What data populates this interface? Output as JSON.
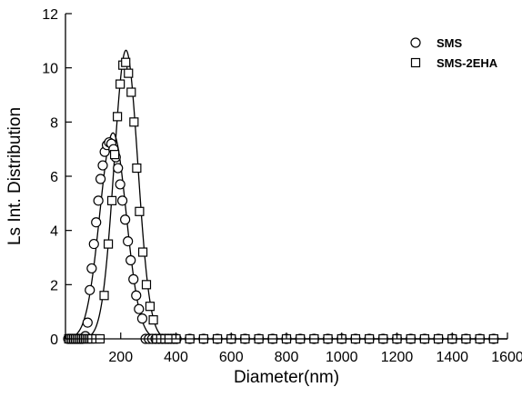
{
  "chart_data": {
    "type": "scatter",
    "title": "",
    "xlabel": "Diameter(nm)",
    "ylabel": "Ls Int. Distribution",
    "xlim": [
      0,
      1600
    ],
    "ylim": [
      0,
      12
    ],
    "xticks": [
      200,
      400,
      600,
      800,
      1000,
      1200,
      1400,
      1600
    ],
    "yticks": [
      0,
      2,
      4,
      6,
      8,
      10,
      12
    ],
    "xtick_labels": [
      "200",
      "400",
      "600",
      "800",
      "1000",
      "1200",
      "1400",
      "1600"
    ],
    "ytick_labels": [
      "0",
      "2",
      "4",
      "6",
      "8",
      "10",
      "12"
    ],
    "grid": false,
    "legend_position": "top-right",
    "series": [
      {
        "name": "SMS",
        "marker": "circle",
        "x": [
          10,
          15,
          20,
          25,
          30,
          35,
          40,
          45,
          50,
          55,
          60,
          65,
          72,
          80,
          88,
          95,
          103,
          111,
          119,
          127,
          135,
          142,
          150,
          158,
          166,
          174,
          182,
          190,
          198,
          206,
          216,
          226,
          236,
          246,
          256,
          266,
          278,
          290,
          302,
          314,
          326,
          338,
          350,
          362,
          372,
          382,
          392,
          402,
          450,
          500,
          550,
          600,
          650,
          700,
          750,
          800,
          850,
          900,
          950,
          1000,
          1050,
          1100,
          1150,
          1200,
          1250,
          1300,
          1350,
          1400,
          1450,
          1500,
          1550
        ],
        "y": [
          0,
          0,
          0,
          0,
          0,
          0,
          0,
          0,
          0,
          0,
          0,
          0.02,
          0.1,
          0.6,
          1.8,
          2.6,
          3.5,
          4.3,
          5.1,
          5.9,
          6.4,
          6.9,
          7.15,
          7.25,
          7.2,
          7.0,
          6.7,
          6.3,
          5.7,
          5.1,
          4.4,
          3.6,
          2.9,
          2.2,
          1.6,
          1.1,
          0.75,
          0,
          0,
          0,
          0,
          0,
          0,
          0,
          0,
          0,
          0,
          0,
          0,
          0,
          0,
          0,
          0,
          0,
          0,
          0,
          0,
          0,
          0,
          0,
          0,
          0,
          0,
          0,
          0,
          0,
          0,
          0,
          0,
          0,
          0
        ]
      },
      {
        "name": "SMS-2EHA",
        "marker": "square",
        "x": [
          12,
          18,
          24,
          30,
          36,
          42,
          48,
          54,
          60,
          66,
          72,
          78,
          84,
          90,
          96,
          110,
          125,
          140,
          155,
          168,
          178,
          188,
          198,
          208,
          218,
          228,
          238,
          248,
          258,
          268,
          280,
          293,
          306,
          318,
          330,
          345,
          360,
          375,
          400,
          450,
          500,
          550,
          600,
          650,
          700,
          750,
          800,
          850,
          900,
          950,
          1000,
          1050,
          1100,
          1150,
          1200,
          1250,
          1300,
          1350,
          1400,
          1450,
          1500,
          1550
        ],
        "y": [
          0,
          0,
          0,
          0,
          0,
          0,
          0,
          0,
          0,
          0,
          0,
          0,
          0,
          0,
          0,
          0,
          0,
          1.6,
          3.5,
          5.1,
          6.8,
          8.2,
          9.4,
          10.1,
          10.2,
          9.8,
          9.1,
          8.0,
          6.3,
          4.7,
          3.2,
          2.0,
          1.2,
          0.7,
          0,
          0,
          0,
          0,
          0,
          0,
          0,
          0,
          0,
          0,
          0,
          0,
          0,
          0,
          0,
          0,
          0,
          0,
          0,
          0,
          0,
          0,
          0,
          0,
          0,
          0,
          0,
          0
        ]
      }
    ],
    "fits": [
      {
        "series": "SMS",
        "peak_x": 172,
        "peak_y": 7.6,
        "sigma": 48
      },
      {
        "series": "SMS-2EHA",
        "peak_x": 219,
        "peak_y": 10.65,
        "sigma": 43
      }
    ]
  }
}
